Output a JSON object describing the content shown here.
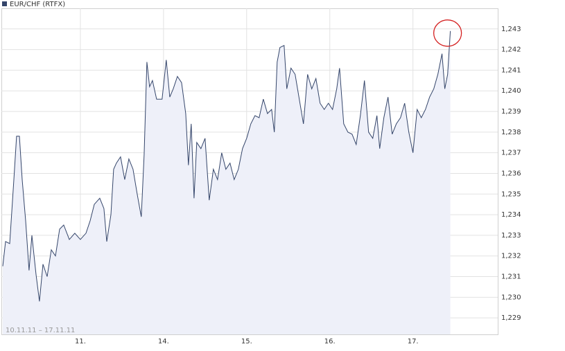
{
  "chart_data": {
    "type": "area",
    "series": [
      {
        "name": "EUR/CHF (RTFX)",
        "color": "#34456a",
        "fill": "#eef0f9",
        "values": [
          1.2315,
          1.2327,
          1.2326,
          1.2357,
          1.2378,
          1.2378,
          1.2357,
          1.2337,
          1.2313,
          1.233,
          1.2311,
          1.2298,
          1.2316,
          1.231,
          1.2323,
          1.232,
          1.2333,
          1.2335,
          1.2328,
          1.2331,
          1.2328,
          1.2331,
          1.2337,
          1.2345,
          1.2348,
          1.2343,
          1.2327,
          1.234,
          1.2362,
          1.2365,
          1.2368,
          1.2357,
          1.2367,
          1.2362,
          1.235,
          1.2339,
          1.2369,
          1.2414,
          1.2402,
          1.2405,
          1.2396,
          1.2396,
          1.2415,
          1.2397,
          1.2401,
          1.2407,
          1.2404,
          1.2389,
          1.2364,
          1.2384,
          1.2348,
          1.2375,
          1.2372,
          1.2377,
          1.2347,
          1.2362,
          1.2357,
          1.237,
          1.2362,
          1.2365,
          1.2357,
          1.2362,
          1.2372,
          1.2377,
          1.2384,
          1.2388,
          1.2387,
          1.2396,
          1.2389,
          1.2391,
          1.238,
          1.2414,
          1.2421,
          1.2422,
          1.2401,
          1.2411,
          1.2408,
          1.2396,
          1.2384,
          1.2408,
          1.2401,
          1.2406,
          1.2394,
          1.2391,
          1.2394,
          1.2391,
          1.2401,
          1.2411,
          1.2384,
          1.238,
          1.2379,
          1.2374,
          1.2388,
          1.2405,
          1.238,
          1.2377,
          1.2388,
          1.2372,
          1.2387,
          1.2397,
          1.2379,
          1.2384,
          1.2387,
          1.2394,
          1.238,
          1.237,
          1.2391,
          1.2387,
          1.2391,
          1.2397,
          1.2401,
          1.2408,
          1.2418,
          1.2401,
          1.2408,
          1.2429
        ]
      }
    ],
    "x": [
      0.067,
      0.1,
      0.15,
      0.2,
      0.233,
      0.267,
      0.3,
      0.342,
      0.383,
      0.417,
      0.467,
      0.508,
      0.55,
      0.6,
      0.65,
      0.7,
      0.75,
      0.8,
      0.867,
      0.933,
      1,
      1.067,
      1.117,
      1.167,
      1.233,
      1.283,
      1.317,
      1.367,
      1.4,
      1.433,
      1.483,
      1.533,
      1.583,
      1.633,
      1.683,
      1.733,
      1.767,
      1.8,
      1.833,
      1.867,
      1.917,
      1.983,
      2.033,
      2.075,
      2.117,
      2.167,
      2.217,
      2.267,
      2.3,
      2.333,
      2.367,
      2.4,
      2.45,
      2.5,
      2.55,
      2.6,
      2.65,
      2.7,
      2.75,
      2.8,
      2.85,
      2.9,
      2.95,
      3,
      3.05,
      3.1,
      3.15,
      3.2,
      3.25,
      3.3,
      3.333,
      3.367,
      3.4,
      3.45,
      3.483,
      3.533,
      3.583,
      3.633,
      3.683,
      3.733,
      3.783,
      3.833,
      3.883,
      3.933,
      3.983,
      4.033,
      4.083,
      4.117,
      4.167,
      4.217,
      4.267,
      4.317,
      4.367,
      4.417,
      4.467,
      4.517,
      4.567,
      4.6,
      4.65,
      4.7,
      4.75,
      4.8,
      4.85,
      4.9,
      4.95,
      5,
      5.05,
      5.1,
      5.15,
      5.2,
      5.25,
      5.3,
      5.35,
      5.383,
      5.417,
      5.45
    ],
    "xlim": [
      0.05,
      6.02
    ],
    "xticks": [
      {
        "value": 1,
        "label": "11."
      },
      {
        "value": 2,
        "label": "14."
      },
      {
        "value": 3,
        "label": "15."
      },
      {
        "value": 4,
        "label": "16."
      },
      {
        "value": 5,
        "label": "17."
      }
    ],
    "ylim": [
      1.2282,
      1.244
    ],
    "yticks": [
      {
        "value": 1.229,
        "label": "1,229"
      },
      {
        "value": 1.23,
        "label": "1,230"
      },
      {
        "value": 1.231,
        "label": "1,231"
      },
      {
        "value": 1.232,
        "label": "1,232"
      },
      {
        "value": 1.233,
        "label": "1,233"
      },
      {
        "value": 1.234,
        "label": "1,234"
      },
      {
        "value": 1.235,
        "label": "1,235"
      },
      {
        "value": 1.236,
        "label": "1,236"
      },
      {
        "value": 1.237,
        "label": "1,237"
      },
      {
        "value": 1.238,
        "label": "1,238"
      },
      {
        "value": 1.239,
        "label": "1,239"
      },
      {
        "value": 1.24,
        "label": "1,240"
      },
      {
        "value": 1.241,
        "label": "1,241"
      },
      {
        "value": 1.242,
        "label": "1,242"
      },
      {
        "value": 1.243,
        "label": "1,243"
      }
    ],
    "annotation": "10.11.11 – 17.11.11",
    "grid": true
  }
}
